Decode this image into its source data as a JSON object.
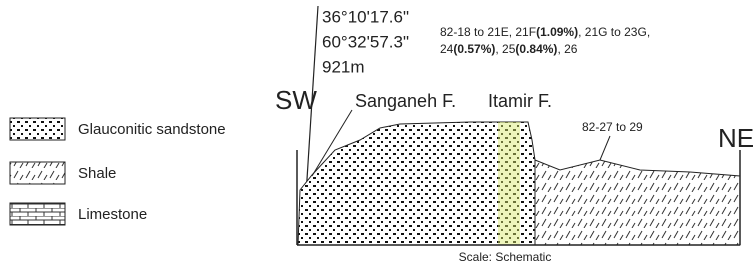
{
  "location": {
    "latitude": "36°10'17.6\"",
    "longitude": "60°32'57.3\"",
    "elevation": "921m"
  },
  "samples": [
    [
      {
        "text": "82-18 to 21E, 21F",
        "bold": false
      },
      {
        "text": "(1.09%)",
        "bold": true
      },
      {
        "text": ", 21G to 23G,",
        "bold": false
      }
    ],
    [
      {
        "text": "24",
        "bold": false
      },
      {
        "text": "(0.57%)",
        "bold": true
      },
      {
        "text": ", 25",
        "bold": false
      },
      {
        "text": "(0.84%)",
        "bold": true
      },
      {
        "text": ", 26",
        "bold": false
      }
    ]
  ],
  "section": {
    "left_label": "SW",
    "right_label": "NE",
    "formations": [
      "Sanganeh F.",
      "Itamir F."
    ],
    "shale_samples": "82-27 to 29",
    "scale": "Scale: Schematic"
  },
  "legend": [
    "Glauconitic sandstone",
    "Shale",
    "Limestone"
  ]
}
